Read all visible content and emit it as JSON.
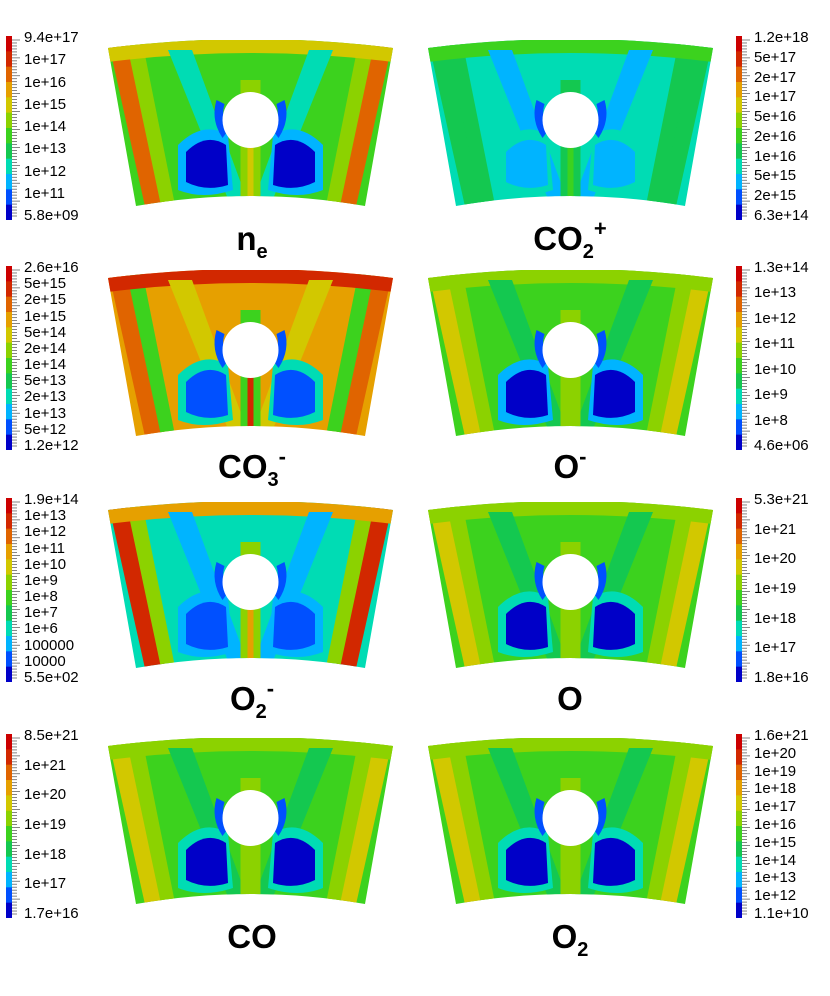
{
  "panels": [
    {
      "id": "ne",
      "label_main": "n",
      "label_sub": "e",
      "label_sup": "",
      "cbar_side": "left",
      "cbar_ticks": [
        "9.4e+17",
        "1e+17",
        "1e+16",
        "1e+15",
        "1e+14",
        "1e+13",
        "1e+12",
        "1e+11",
        "5.8e+09"
      ],
      "scheme": "ne"
    },
    {
      "id": "co2p",
      "label_main": "CO",
      "label_sub": "2",
      "label_sup": "+",
      "cbar_side": "right",
      "cbar_ticks": [
        "1.2e+18",
        "5e+17",
        "2e+17",
        "1e+17",
        "5e+16",
        "2e+16",
        "1e+16",
        "5e+15",
        "2e+15",
        "6.3e+14"
      ],
      "scheme": "co2p"
    },
    {
      "id": "co3m",
      "label_main": "CO",
      "label_sub": "3",
      "label_sup": "-",
      "cbar_side": "left",
      "cbar_ticks": [
        "2.6e+16",
        "5e+15",
        "2e+15",
        "1e+15",
        "5e+14",
        "2e+14",
        "1e+14",
        "5e+13",
        "2e+13",
        "1e+13",
        "5e+12",
        "1.2e+12"
      ],
      "scheme": "co3m"
    },
    {
      "id": "om",
      "label_main": "O",
      "label_sub": "",
      "label_sup": "-",
      "cbar_side": "right",
      "cbar_ticks": [
        "1.3e+14",
        "1e+13",
        "1e+12",
        "1e+11",
        "1e+10",
        "1e+9",
        "1e+8",
        "4.6e+06"
      ],
      "scheme": "om"
    },
    {
      "id": "o2m",
      "label_main": "O",
      "label_sub": "2",
      "label_sup": "-",
      "cbar_side": "left",
      "cbar_ticks": [
        "1.9e+14",
        "1e+13",
        "1e+12",
        "1e+11",
        "1e+10",
        "1e+9",
        "1e+8",
        "1e+7",
        "1e+6",
        "100000",
        "10000",
        "5.5e+02"
      ],
      "scheme": "o2m"
    },
    {
      "id": "o",
      "label_main": "O",
      "label_sub": "",
      "label_sup": "",
      "cbar_side": "right",
      "cbar_ticks": [
        "5.3e+21",
        "1e+21",
        "1e+20",
        "1e+19",
        "1e+18",
        "1e+17",
        "1.8e+16"
      ],
      "scheme": "o"
    },
    {
      "id": "co",
      "label_main": "CO",
      "label_sub": "",
      "label_sup": "",
      "cbar_side": "left",
      "cbar_ticks": [
        "8.5e+21",
        "1e+21",
        "1e+20",
        "1e+19",
        "1e+18",
        "1e+17",
        "1.7e+16"
      ],
      "scheme": "o"
    },
    {
      "id": "o2",
      "label_main": "O",
      "label_sub": "2",
      "label_sup": "",
      "cbar_side": "right",
      "cbar_ticks": [
        "1.6e+21",
        "1e+20",
        "1e+19",
        "1e+18",
        "1e+17",
        "1e+16",
        "1e+15",
        "1e+14",
        "1e+13",
        "1e+12",
        "1.1e+10"
      ],
      "scheme": "o"
    }
  ],
  "colorscale": [
    "#0000c8",
    "#0050ff",
    "#00b4ff",
    "#00dcb4",
    "#14c850",
    "#3cd21e",
    "#8cd200",
    "#d2c800",
    "#e6a000",
    "#e06400",
    "#d22800",
    "#cc0000"
  ]
}
